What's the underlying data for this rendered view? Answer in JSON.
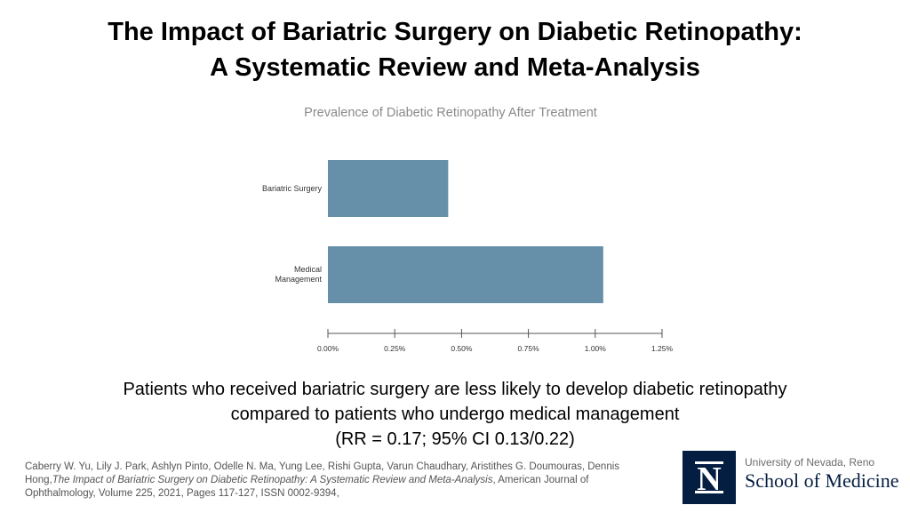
{
  "title": {
    "line1": "The Impact of Bariatric Surgery on Diabetic Retinopathy:",
    "line2": "A Systematic Review and Meta-Analysis"
  },
  "chart_data": {
    "type": "bar",
    "orientation": "horizontal",
    "title": "Prevalence of Diabetic Retinopathy After Treatment",
    "categories": [
      "Bariatric Surgery",
      "Medical Management"
    ],
    "values": [
      0.45,
      1.03
    ],
    "value_unit": "%",
    "xlim": [
      0,
      1.25
    ],
    "xticks": [
      0,
      0.25,
      0.5,
      0.75,
      1.0,
      1.25
    ],
    "xtick_labels": [
      "0.00%",
      "0.25%",
      "0.50%",
      "0.75%",
      "1.00%",
      "1.25%"
    ],
    "xlabel": "",
    "ylabel": "",
    "bar_color": "#6690aa",
    "grid": false,
    "legend": false
  },
  "summary": {
    "line1": "Patients who received bariatric surgery are less likely to develop diabetic retinopathy",
    "line2": "compared to patients who undergo medical management",
    "line3": "(RR = 0.17; 95% CI 0.13/0.22)"
  },
  "citation": {
    "authors": "Caberry W. Yu, Lily J. Park, Ashlyn Pinto, Odelle N. Ma, Yung Lee, Rishi Gupta, Varun Chaudhary, Aristithes G. Doumouras, Dennis Hong,",
    "article_title": "The Impact of Bariatric Surgery on Diabetic Retinopathy: A Systematic Review and Meta-Analysis",
    "source": ", American Journal of Ophthalmology, Volume 225, 2021, Pages 117-127, ISSN 0002-9394,"
  },
  "logo": {
    "letter": "N",
    "university": "University of Nevada, Reno",
    "school": "School of Medicine",
    "color": "#041e42"
  }
}
